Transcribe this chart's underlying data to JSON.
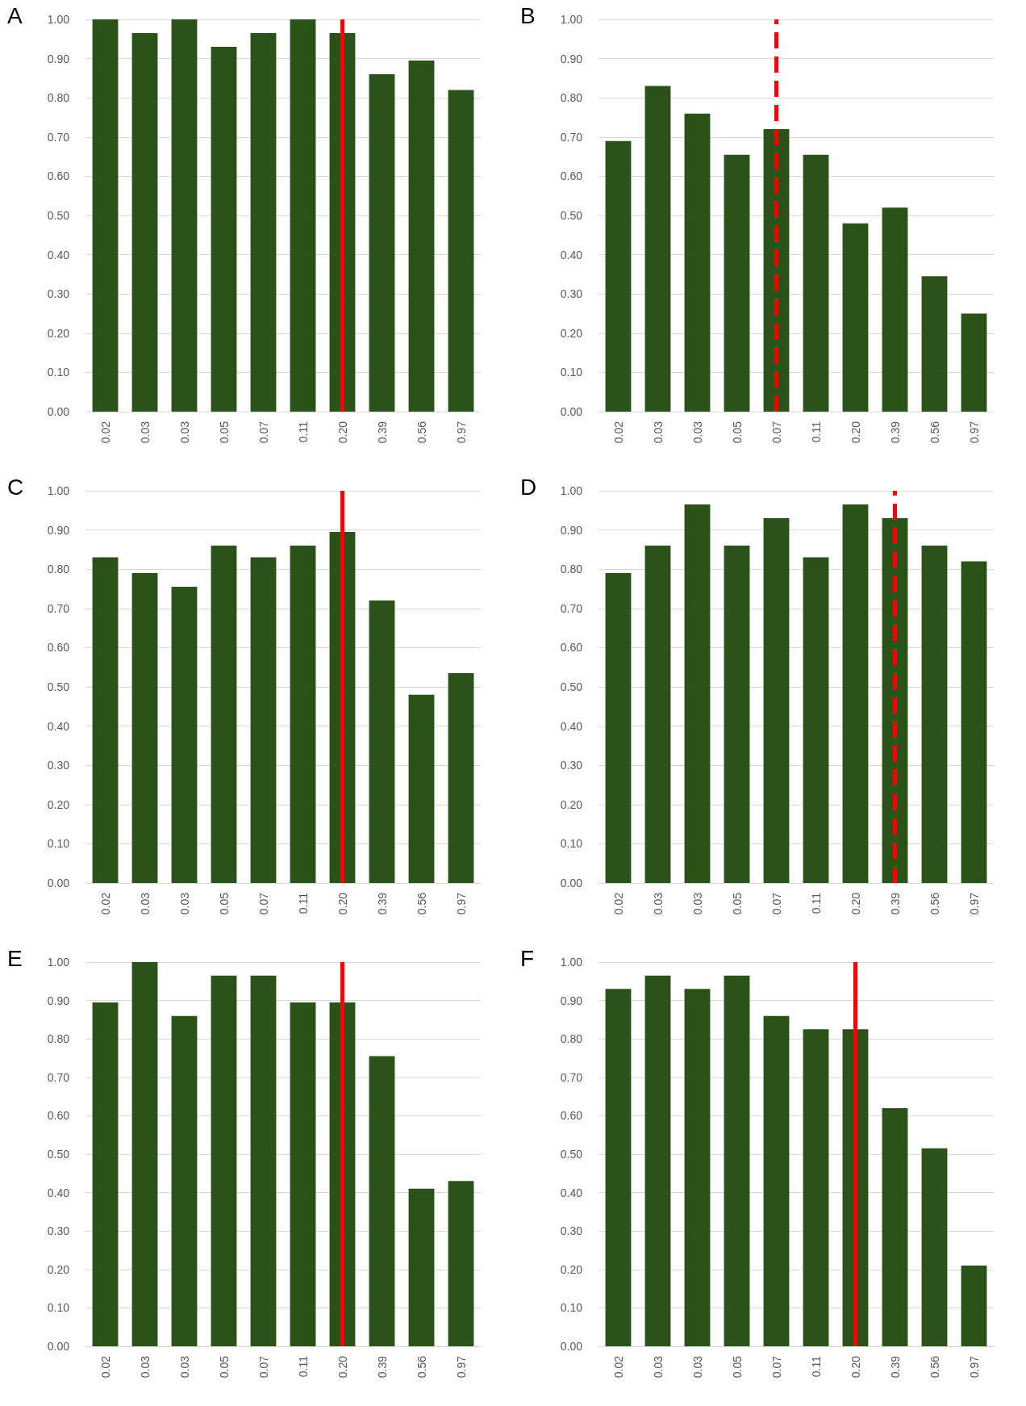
{
  "chart_data": [
    {
      "type": "bar",
      "title": "A",
      "categories": [
        "0.02",
        "0.03",
        "0.03",
        "0.05",
        "0.07",
        "0.11",
        "0.20",
        "0.39",
        "0.56",
        "0.97"
      ],
      "values": [
        1.0,
        0.965,
        1.0,
        0.93,
        0.965,
        1.0,
        0.965,
        0.86,
        0.895,
        0.82
      ],
      "color": "#2a5219",
      "ylim": [
        0,
        1
      ],
      "yticks": [
        {
          "value": 0,
          "label": "0.00"
        },
        {
          "value": 0.1,
          "label": "0.10"
        },
        {
          "value": 0.2,
          "label": "0.20"
        },
        {
          "value": 0.3,
          "label": "0.30"
        },
        {
          "value": 0.4,
          "label": "0.40"
        },
        {
          "value": 0.5,
          "label": "0.50"
        },
        {
          "value": 0.6,
          "label": "0.60"
        },
        {
          "value": 0.7,
          "label": "0.70"
        },
        {
          "value": 0.8,
          "label": "0.80"
        },
        {
          "value": 0.9,
          "label": "0.90"
        },
        {
          "value": 1,
          "label": "1.00"
        }
      ],
      "grid": "y",
      "ref_lines": [
        {
          "axis": "x",
          "value": "0.20",
          "color": "#ff0000",
          "line_style": "solid"
        }
      ]
    },
    {
      "type": "bar",
      "title": "B",
      "categories": [
        "0.02",
        "0.03",
        "0.03",
        "0.05",
        "0.07",
        "0.11",
        "0.20",
        "0.39",
        "0.56",
        "0.97"
      ],
      "values": [
        0.69,
        0.83,
        0.76,
        0.655,
        0.72,
        0.655,
        0.48,
        0.52,
        0.345,
        0.25
      ],
      "color": "#2a5219",
      "ylim": [
        0,
        1
      ],
      "yticks": [
        {
          "value": 0,
          "label": "0.00"
        },
        {
          "value": 0.1,
          "label": "0.10"
        },
        {
          "value": 0.2,
          "label": "0.20"
        },
        {
          "value": 0.3,
          "label": "0.30"
        },
        {
          "value": 0.4,
          "label": "0.40"
        },
        {
          "value": 0.5,
          "label": "0.50"
        },
        {
          "value": 0.6,
          "label": "0.60"
        },
        {
          "value": 0.7,
          "label": "0.70"
        },
        {
          "value": 0.8,
          "label": "0.80"
        },
        {
          "value": 0.9,
          "label": "0.90"
        },
        {
          "value": 1,
          "label": "1.00"
        }
      ],
      "grid": "y",
      "ref_lines": [
        {
          "axis": "x",
          "value": "0.07",
          "color": "#ff0000",
          "line_style": "dashed"
        }
      ]
    },
    {
      "type": "bar",
      "title": "C",
      "categories": [
        "0.02",
        "0.03",
        "0.03",
        "0.05",
        "0.07",
        "0.11",
        "0.20",
        "0.39",
        "0.56",
        "0.97"
      ],
      "values": [
        0.83,
        0.79,
        0.755,
        0.86,
        0.83,
        0.86,
        0.895,
        0.72,
        0.48,
        0.535
      ],
      "color": "#2a5219",
      "ylim": [
        0,
        1
      ],
      "yticks": [
        {
          "value": 0,
          "label": "0.00"
        },
        {
          "value": 0.1,
          "label": "0.10"
        },
        {
          "value": 0.2,
          "label": "0.20"
        },
        {
          "value": 0.3,
          "label": "0.30"
        },
        {
          "value": 0.4,
          "label": "0.40"
        },
        {
          "value": 0.5,
          "label": "0.50"
        },
        {
          "value": 0.6,
          "label": "0.60"
        },
        {
          "value": 0.7,
          "label": "0.70"
        },
        {
          "value": 0.8,
          "label": "0.80"
        },
        {
          "value": 0.9,
          "label": "0.90"
        },
        {
          "value": 1,
          "label": "1.00"
        }
      ],
      "grid": "y",
      "ref_lines": [
        {
          "axis": "x",
          "value": "0.20",
          "color": "#ff0000",
          "line_style": "solid"
        }
      ]
    },
    {
      "type": "bar",
      "title": "D",
      "categories": [
        "0.02",
        "0.03",
        "0.03",
        "0.05",
        "0.07",
        "0.11",
        "0.20",
        "0.39",
        "0.56",
        "0.97"
      ],
      "values": [
        0.79,
        0.86,
        0.965,
        0.86,
        0.93,
        0.83,
        0.965,
        0.93,
        0.86,
        0.82
      ],
      "color": "#2a5219",
      "ylim": [
        0,
        1
      ],
      "yticks": [
        {
          "value": 0,
          "label": "0.00"
        },
        {
          "value": 0.1,
          "label": "0.10"
        },
        {
          "value": 0.2,
          "label": "0.20"
        },
        {
          "value": 0.3,
          "label": "0.30"
        },
        {
          "value": 0.4,
          "label": "0.40"
        },
        {
          "value": 0.5,
          "label": "0.50"
        },
        {
          "value": 0.6,
          "label": "0.60"
        },
        {
          "value": 0.7,
          "label": "0.70"
        },
        {
          "value": 0.8,
          "label": "0.80"
        },
        {
          "value": 0.9,
          "label": "0.90"
        },
        {
          "value": 1,
          "label": "1.00"
        }
      ],
      "grid": "y",
      "ref_lines": [
        {
          "axis": "x",
          "value": "0.39",
          "color": "#ff0000",
          "line_style": "dashed"
        }
      ]
    },
    {
      "type": "bar",
      "title": "E",
      "categories": [
        "0.02",
        "0.03",
        "0.03",
        "0.05",
        "0.07",
        "0.11",
        "0.20",
        "0.39",
        "0.56",
        "0.97"
      ],
      "values": [
        0.895,
        1.0,
        0.86,
        0.965,
        0.965,
        0.895,
        0.895,
        0.755,
        0.41,
        0.43
      ],
      "color": "#2a5219",
      "ylim": [
        0,
        1
      ],
      "yticks": [
        {
          "value": 0,
          "label": "0.00"
        },
        {
          "value": 0.1,
          "label": "0.10"
        },
        {
          "value": 0.2,
          "label": "0.20"
        },
        {
          "value": 0.3,
          "label": "0.30"
        },
        {
          "value": 0.4,
          "label": "0.40"
        },
        {
          "value": 0.5,
          "label": "0.50"
        },
        {
          "value": 0.6,
          "label": "0.60"
        },
        {
          "value": 0.7,
          "label": "0.70"
        },
        {
          "value": 0.8,
          "label": "0.80"
        },
        {
          "value": 0.9,
          "label": "0.90"
        },
        {
          "value": 1,
          "label": "1.00"
        }
      ],
      "grid": "y",
      "ref_lines": [
        {
          "axis": "x",
          "value": "0.20",
          "color": "#ff0000",
          "line_style": "solid"
        }
      ]
    },
    {
      "type": "bar",
      "title": "F",
      "categories": [
        "0.02",
        "0.03",
        "0.03",
        "0.05",
        "0.07",
        "0.11",
        "0.20",
        "0.39",
        "0.56",
        "0.97"
      ],
      "values": [
        0.93,
        0.965,
        0.93,
        0.965,
        0.86,
        0.825,
        0.825,
        0.62,
        0.515,
        0.21
      ],
      "color": "#2a5219",
      "ylim": [
        0,
        1
      ],
      "yticks": [
        {
          "value": 0,
          "label": "0.00"
        },
        {
          "value": 0.1,
          "label": "0.10"
        },
        {
          "value": 0.2,
          "label": "0.20"
        },
        {
          "value": 0.3,
          "label": "0.30"
        },
        {
          "value": 0.4,
          "label": "0.40"
        },
        {
          "value": 0.5,
          "label": "0.50"
        },
        {
          "value": 0.6,
          "label": "0.60"
        },
        {
          "value": 0.7,
          "label": "0.70"
        },
        {
          "value": 0.8,
          "label": "0.80"
        },
        {
          "value": 0.9,
          "label": "0.90"
        },
        {
          "value": 1,
          "label": "1.00"
        }
      ],
      "grid": "y",
      "ref_lines": [
        {
          "axis": "x",
          "value": "0.20",
          "color": "#ff0000",
          "line_style": "solid"
        }
      ]
    }
  ]
}
